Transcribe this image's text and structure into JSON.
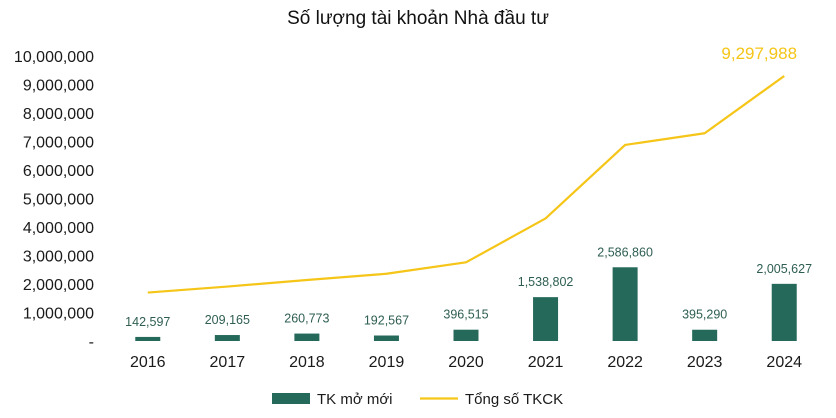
{
  "chart_data": {
    "type": "bar+line",
    "title": "Số lượng tài khoản Nhà đầu tư",
    "categories": [
      "2016",
      "2017",
      "2018",
      "2019",
      "2020",
      "2021",
      "2022",
      "2023",
      "2024"
    ],
    "y_ticks": [
      "-",
      "1,000,000",
      "2,000,000",
      "3,000,000",
      "4,000,000",
      "5,000,000",
      "6,000,000",
      "7,000,000",
      "8,000,000",
      "9,000,000",
      "10,000,000"
    ],
    "ylim": [
      0,
      10000000
    ],
    "grid": false,
    "legend_position": "bottom",
    "series": [
      {
        "name": "TK mở mới",
        "kind": "bar",
        "color": "#24695a",
        "values": [
          142597,
          209165,
          260773,
          192567,
          396515,
          1538802,
          2586860,
          395290,
          2005627
        ],
        "labels": [
          "142,597",
          "209,165",
          "260,773",
          "192,567",
          "396,515",
          "1,538,802",
          "2,586,860",
          "395,290",
          "2,005,627"
        ],
        "label_color": "#2e5e52"
      },
      {
        "name": "Tổng số TKCK",
        "kind": "line",
        "color": "#f5c518",
        "values": [
          1700000,
          1910000,
          2140000,
          2360000,
          2760000,
          4300000,
          6880000,
          7290000,
          9297988
        ],
        "last_label": "9,297,988"
      }
    ]
  }
}
